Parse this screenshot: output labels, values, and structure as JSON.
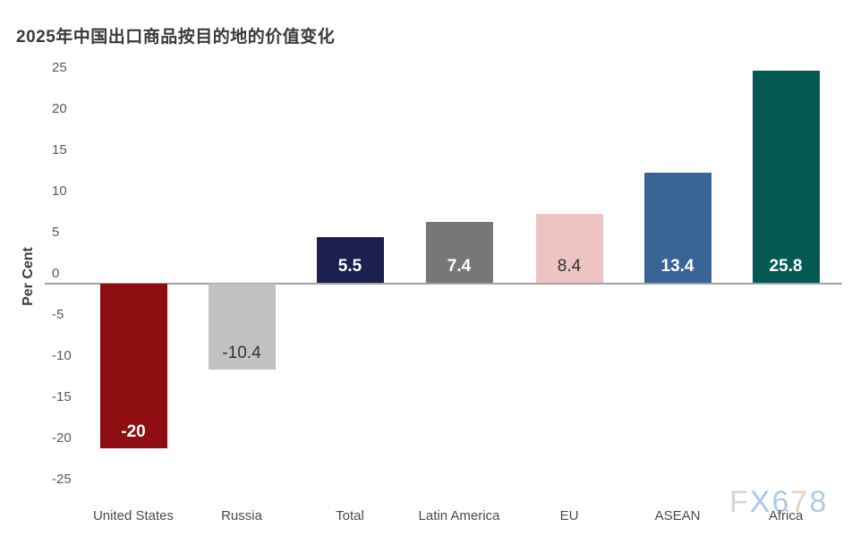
{
  "title": "2025年中国出口商品按目的地的价值变化",
  "watermark": {
    "text": "FX678",
    "letter_colors": [
      "#dcd6cc",
      "#a9c7e8",
      "#aec9e9",
      "#e4d2bc",
      "#b1cbe9"
    ]
  },
  "chart_data": {
    "type": "bar",
    "title": "2025年中国出口商品按目的地的价值变化",
    "categories": [
      "United States",
      "Russia",
      "Total",
      "Latin America",
      "EU",
      "ASEAN",
      "Africa"
    ],
    "values": [
      -20,
      -10.4,
      5.5,
      7.4,
      8.4,
      13.4,
      25.8
    ],
    "value_labels": [
      "-20",
      "-10.4",
      "5.5",
      "7.4",
      "8.4",
      "13.4",
      "25.8"
    ],
    "bar_colors": [
      "#8e0e12",
      "#c2c2c2",
      "#1b204e",
      "#777777",
      "#edc4c2",
      "#3a6396",
      "#045a52"
    ],
    "value_label_colors": [
      "#ffffff",
      "#333333",
      "#ffffff",
      "#ffffff",
      "#333333",
      "#ffffff",
      "#ffffff"
    ],
    "xlabel": "",
    "ylabel": "Per Cent",
    "ylim": [
      -25,
      25
    ],
    "yticks": [
      25,
      20,
      15,
      10,
      5,
      0,
      -5,
      -10,
      -15,
      -20,
      -25
    ],
    "grid": false,
    "legend": false,
    "zero_axis_line_color": "#a2a2a2"
  }
}
